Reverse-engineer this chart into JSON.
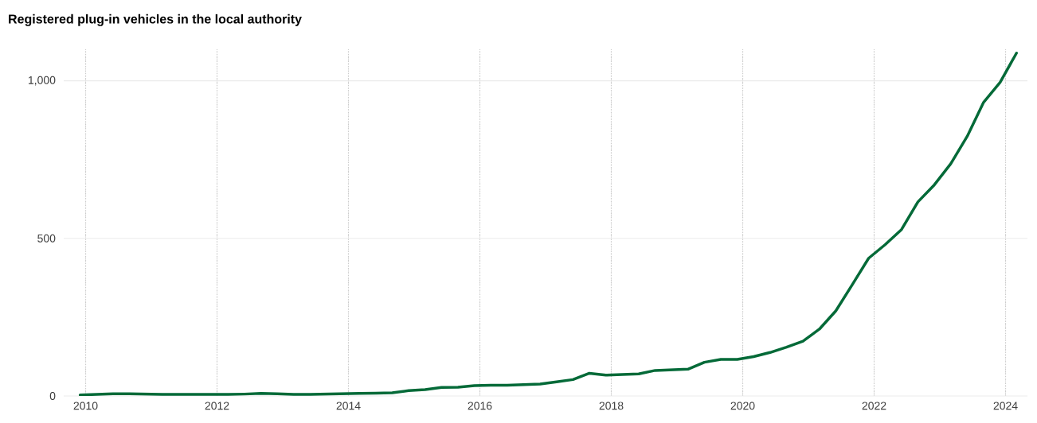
{
  "chart_data": {
    "type": "line",
    "title": "Registered plug-in vehicles in the local authority",
    "x": [
      "2009-12",
      "2010-03",
      "2010-06",
      "2010-09",
      "2010-12",
      "2011-03",
      "2011-06",
      "2011-09",
      "2011-12",
      "2012-03",
      "2012-06",
      "2012-09",
      "2012-12",
      "2013-03",
      "2013-06",
      "2013-09",
      "2013-12",
      "2014-03",
      "2014-06",
      "2014-09",
      "2014-12",
      "2015-03",
      "2015-06",
      "2015-09",
      "2015-12",
      "2016-03",
      "2016-06",
      "2016-09",
      "2016-12",
      "2017-03",
      "2017-06",
      "2017-09",
      "2017-12",
      "2018-03",
      "2018-06",
      "2018-09",
      "2018-12",
      "2019-03",
      "2019-06",
      "2019-09",
      "2019-12",
      "2020-03",
      "2020-06",
      "2020-09",
      "2020-12",
      "2021-03",
      "2021-06",
      "2021-09",
      "2021-12",
      "2022-03",
      "2022-06",
      "2022-09",
      "2022-12",
      "2023-03",
      "2023-06",
      "2023-09",
      "2023-12",
      "2024-03"
    ],
    "values": [
      3,
      5,
      7,
      7,
      6,
      5,
      5,
      5,
      5,
      5,
      6,
      8,
      7,
      5,
      5,
      6,
      7,
      8,
      9,
      10,
      17,
      20,
      27,
      28,
      33,
      34,
      34,
      36,
      38,
      45,
      52,
      72,
      66,
      68,
      70,
      81,
      83,
      85,
      107,
      116,
      116,
      125,
      138,
      155,
      174,
      212,
      270,
      353,
      437,
      480,
      528,
      616,
      670,
      737,
      824,
      932,
      995,
      1088
    ],
    "color": "#046a38",
    "xlim": [
      "2009-09",
      "2024-05"
    ],
    "ylim": [
      0,
      1100
    ],
    "xticks": [
      "2010",
      "2012",
      "2014",
      "2016",
      "2018",
      "2020",
      "2022",
      "2024"
    ],
    "yticks": [
      0,
      500,
      {
        "value": 1000,
        "label": "1,000"
      }
    ],
    "grid": true,
    "marker": "none",
    "line_style": "solid"
  }
}
